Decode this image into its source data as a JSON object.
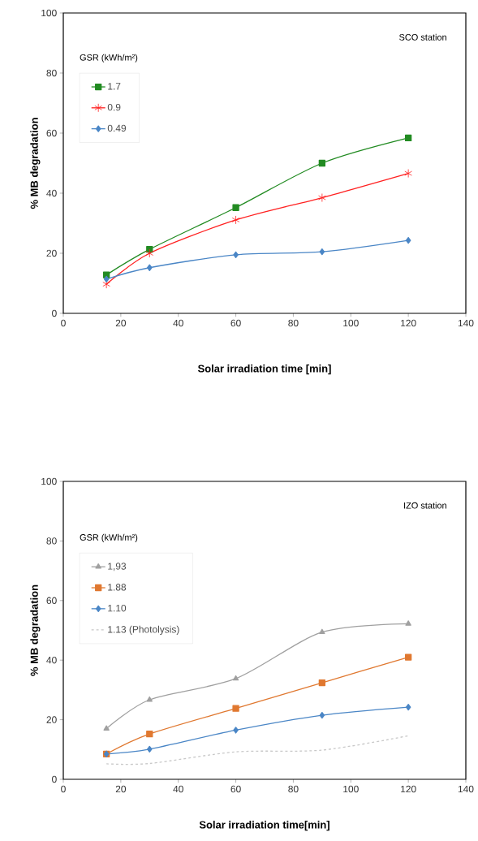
{
  "chart_data": [
    {
      "type": "line",
      "xlabel": "Solar irradiation time [min]",
      "ylabel": "% MB degradation",
      "legend_title": "GSR (kWh/m²)",
      "annotations": [
        "SCO station"
      ],
      "x": [
        15,
        30,
        60,
        90,
        120
      ],
      "xlim": [
        0,
        140
      ],
      "ylim": [
        0,
        100
      ],
      "xticks": [
        0,
        20,
        40,
        60,
        80,
        100,
        120,
        140
      ],
      "yticks": [
        0,
        20,
        40,
        60,
        80,
        100
      ],
      "legend": "top left",
      "grid": false,
      "series": [
        {
          "name": "1.7",
          "color": "#228b22",
          "marker": "square",
          "values": [
            12.8,
            21.3,
            35.2,
            50,
            58.4
          ]
        },
        {
          "name": "0.9",
          "color": "#ff2020",
          "marker": "cross",
          "values": [
            9.7,
            20,
            31.1,
            38.5,
            46.6
          ]
        },
        {
          "name": "0.49",
          "color": "#4a86c6",
          "marker": "diamond",
          "values": [
            11.4,
            15.2,
            19.5,
            20.5,
            24.3
          ]
        }
      ]
    },
    {
      "type": "line",
      "xlabel": "Solar irradiation time[min]",
      "ylabel": "% MB degradation",
      "legend_title": "GSR (kWh/m²)",
      "annotations": [
        "IZO station"
      ],
      "x": [
        15,
        30,
        60,
        90,
        120
      ],
      "xlim": [
        0,
        140
      ],
      "ylim": [
        0,
        100
      ],
      "xticks": [
        0,
        20,
        40,
        60,
        80,
        100,
        120,
        140
      ],
      "yticks": [
        0,
        20,
        40,
        60,
        80,
        100
      ],
      "legend": "top left",
      "grid": false,
      "series": [
        {
          "name": "1,93",
          "color": "#a0a0a0",
          "marker": "triangle",
          "values": [
            17,
            26.7,
            33.8,
            49.4,
            52.2
          ]
        },
        {
          "name": "1.88",
          "color": "#e07830",
          "marker": "square",
          "values": [
            8.5,
            15.2,
            23.8,
            32.4,
            41
          ]
        },
        {
          "name": "1.10",
          "color": "#4a86c6",
          "marker": "diamond",
          "values": [
            8.5,
            10.1,
            16.5,
            21.5,
            24.2
          ]
        },
        {
          "name": "1.13 (Photolysis)",
          "color": "#c8c8c8",
          "marker": "none",
          "line_style": "dashed",
          "values": [
            5.2,
            5.3,
            9.2,
            9.8,
            14.6
          ]
        }
      ]
    }
  ]
}
